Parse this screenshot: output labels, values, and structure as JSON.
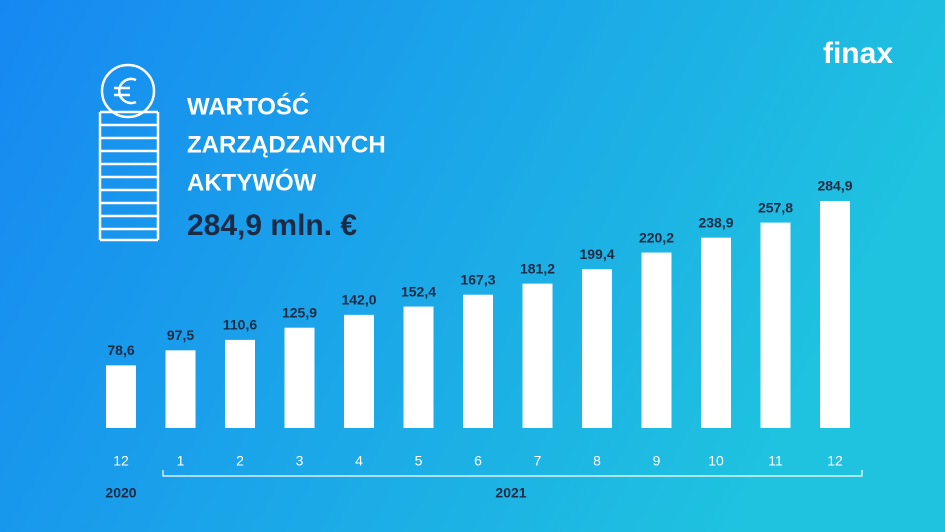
{
  "chart_data": {
    "type": "bar",
    "title_lines": [
      "WARTOŚĆ",
      "ZARZĄDZANYCH",
      "AKTYWÓW"
    ],
    "subtitle": "284,9 mln. €",
    "logo": "finax",
    "categories": [
      "12",
      "1",
      "2",
      "3",
      "4",
      "5",
      "6",
      "7",
      "8",
      "9",
      "10",
      "11",
      "12"
    ],
    "values": [
      78.6,
      97.5,
      110.6,
      125.9,
      142.0,
      152.4,
      167.3,
      181.2,
      199.4,
      220.2,
      238.9,
      257.8,
      284.9
    ],
    "value_labels": [
      "78,6",
      "97,5",
      "110,6",
      "125,9",
      "142,0",
      "152,4",
      "167,3",
      "181,2",
      "199,4",
      "220,2",
      "238,9",
      "257,8",
      "284,9"
    ],
    "year_labels": [
      "2020",
      "2021"
    ],
    "color": "#ffffff"
  }
}
